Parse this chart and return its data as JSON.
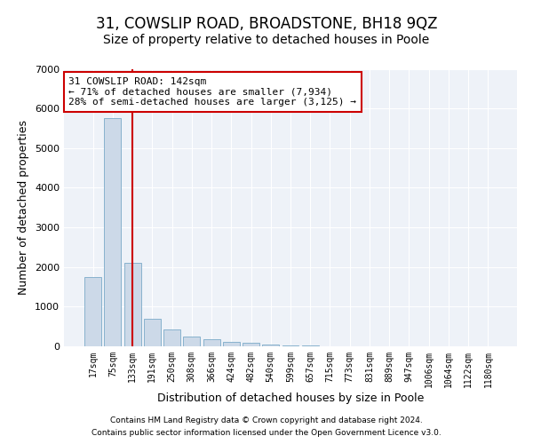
{
  "title_line1": "31, COWSLIP ROAD, BROADSTONE, BH18 9QZ",
  "title_line2": "Size of property relative to detached houses in Poole",
  "xlabel": "Distribution of detached houses by size in Poole",
  "ylabel": "Number of detached properties",
  "annotation_title": "31 COWSLIP ROAD: 142sqm",
  "annotation_line2": "← 71% of detached houses are smaller (7,934)",
  "annotation_line3": "28% of semi-detached houses are larger (3,125) →",
  "footer_line1": "Contains HM Land Registry data © Crown copyright and database right 2024.",
  "footer_line2": "Contains public sector information licensed under the Open Government Licence v3.0.",
  "bar_color": "#ccd9e8",
  "bar_edge_color": "#7aaac8",
  "red_line_color": "#cc0000",
  "annotation_box_edge": "#cc0000",
  "background_color": "#eef2f8",
  "categories": [
    "17sqm",
    "75sqm",
    "133sqm",
    "191sqm",
    "250sqm",
    "308sqm",
    "366sqm",
    "424sqm",
    "482sqm",
    "540sqm",
    "599sqm",
    "657sqm",
    "715sqm",
    "773sqm",
    "831sqm",
    "889sqm",
    "947sqm",
    "1006sqm",
    "1064sqm",
    "1122sqm",
    "1180sqm"
  ],
  "values": [
    1750,
    5750,
    2100,
    700,
    420,
    250,
    170,
    110,
    80,
    50,
    30,
    20,
    0,
    0,
    0,
    0,
    0,
    0,
    0,
    0,
    0
  ],
  "ylim": [
    0,
    7000
  ],
  "yticks": [
    0,
    1000,
    2000,
    3000,
    4000,
    5000,
    6000,
    7000
  ],
  "property_sqm_index": 2,
  "grid_color": "#ffffff",
  "title_fontsize": 12,
  "subtitle_fontsize": 10
}
